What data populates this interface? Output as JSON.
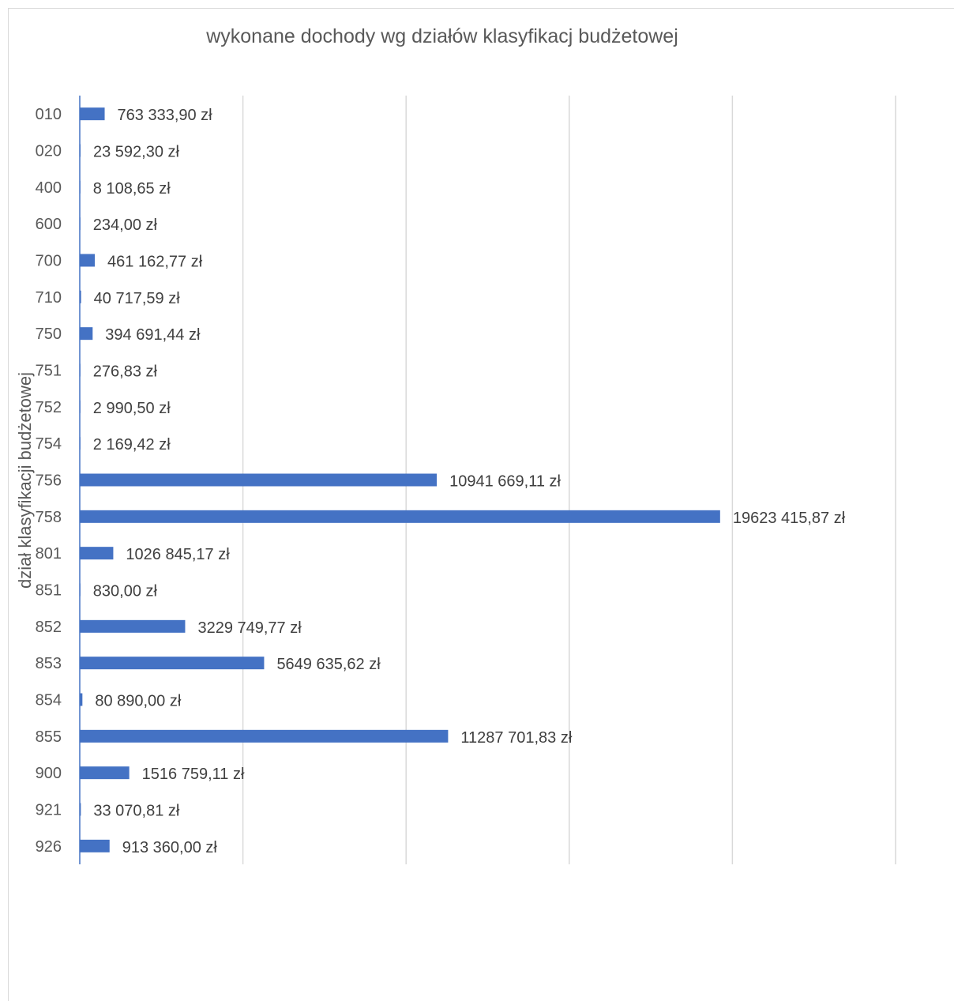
{
  "chart_data": {
    "type": "bar",
    "orientation": "horizontal",
    "title": "wykonane dochody wg działów klasyfikacj budżetowej",
    "ylabel": "dział klasyfikacji budżetowej",
    "xlabel": "",
    "xlim": [
      0,
      25000000
    ],
    "grid": true,
    "color": "#4472c4",
    "categories": [
      "010",
      "020",
      "400",
      "600",
      "700",
      "710",
      "750",
      "751",
      "752",
      "754",
      "756",
      "758",
      "801",
      "851",
      "852",
      "853",
      "854",
      "855",
      "900",
      "921",
      "926"
    ],
    "values": [
      763333.9,
      23592.3,
      8108.65,
      234.0,
      461162.77,
      40717.59,
      394691.44,
      276.83,
      2990.5,
      2169.42,
      10941669.11,
      19623415.87,
      1026845.17,
      830.0,
      3229749.77,
      5649635.62,
      80890.0,
      11287701.83,
      1516759.11,
      33070.81,
      913360.0
    ],
    "data_labels": [
      "763 333,90 zł",
      "23 592,30 zł",
      "8 108,65 zł",
      "234,00 zł",
      "461 162,77 zł",
      "40 717,59 zł",
      "394 691,44 zł",
      "276,83 zł",
      "2 990,50 zł",
      "2 169,42 zł",
      "10941 669,11 zł",
      "19623 415,87 zł",
      "1026 845,17 zł",
      "830,00 zł",
      "3229 749,77 zł",
      "5649 635,62 zł",
      "80 890,00 zł",
      "11287 701,83 zł",
      "1516 759,11 zł",
      "33 070,81 zł",
      "913 360,00 zł"
    ]
  }
}
